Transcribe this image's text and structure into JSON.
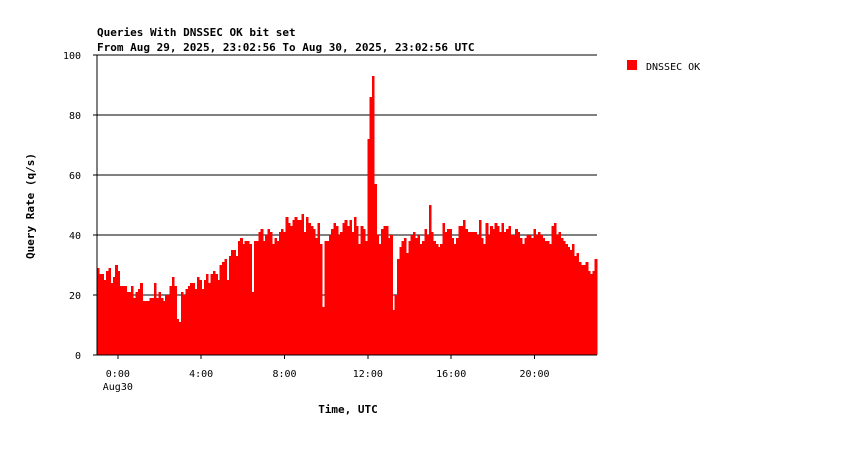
{
  "chart_data": {
    "type": "bar",
    "title": "Queries With DNSSEC OK bit set",
    "subtitle": "From Aug 29, 2025, 23:02:56 To Aug 30, 2025, 23:02:56 UTC",
    "xlabel": "Time, UTC",
    "ylabel": "Query Rate (q/s)",
    "ylim": [
      0,
      100
    ],
    "yticks": [
      0,
      20,
      40,
      60,
      80,
      100
    ],
    "xlim": [
      -1.0,
      23.0
    ],
    "xticks": [
      {
        "x": 0,
        "label": "0:00",
        "sublabel": "Aug30"
      },
      {
        "x": 4,
        "label": "4:00",
        "sublabel": ""
      },
      {
        "x": 8,
        "label": "8:00",
        "sublabel": ""
      },
      {
        "x": 12,
        "label": "12:00",
        "sublabel": ""
      },
      {
        "x": 16,
        "label": "16:00",
        "sublabel": ""
      },
      {
        "x": 20,
        "label": "20:00",
        "sublabel": ""
      }
    ],
    "grid": "horizontal",
    "legend_position": "top-right",
    "series": [
      {
        "name": "DNSSEC OK",
        "color": "#ff0000",
        "values": [
          29,
          27,
          27,
          25,
          28,
          29,
          24,
          26,
          30,
          28,
          23,
          23,
          23,
          21,
          21,
          23,
          19,
          21,
          22,
          24,
          18,
          18,
          18,
          19,
          19,
          24,
          19,
          21,
          19,
          18,
          20,
          20,
          23,
          26,
          23,
          12,
          11,
          21,
          20,
          22,
          23,
          24,
          24,
          22,
          26,
          25,
          22,
          25,
          27,
          24,
          27,
          28,
          27,
          25,
          30,
          31,
          32,
          25,
          33,
          35,
          35,
          33,
          38,
          39,
          37,
          38,
          38,
          37,
          21,
          38,
          38,
          41,
          42,
          38,
          40,
          42,
          41,
          37,
          39,
          38,
          41,
          42,
          41,
          46,
          44,
          43,
          45,
          46,
          45,
          45,
          47,
          41,
          46,
          44,
          43,
          42,
          39,
          44,
          37,
          16,
          38,
          38,
          40,
          42,
          44,
          43,
          40,
          41,
          44,
          45,
          43,
          45,
          41,
          46,
          43,
          37,
          43,
          42,
          38,
          72,
          86,
          93,
          57,
          40,
          37,
          42,
          43,
          43,
          39,
          40,
          15,
          20,
          32,
          36,
          38,
          39,
          34,
          38,
          40,
          41,
          39,
          40,
          37,
          38,
          42,
          40,
          50,
          41,
          38,
          37,
          36,
          37,
          44,
          41,
          42,
          42,
          39,
          37,
          39,
          43,
          43,
          45,
          42,
          41,
          41,
          41,
          41,
          40,
          45,
          39,
          37,
          44,
          40,
          43,
          42,
          44,
          43,
          41,
          44,
          41,
          42,
          43,
          40,
          40,
          42,
          41,
          39,
          37,
          39,
          40,
          40,
          39,
          42,
          40,
          41,
          40,
          39,
          38,
          38,
          37,
          43,
          44,
          40,
          41,
          39,
          38,
          37,
          36,
          35,
          37,
          33,
          34,
          31,
          30,
          30,
          31,
          28,
          27,
          28,
          32
        ]
      }
    ]
  }
}
